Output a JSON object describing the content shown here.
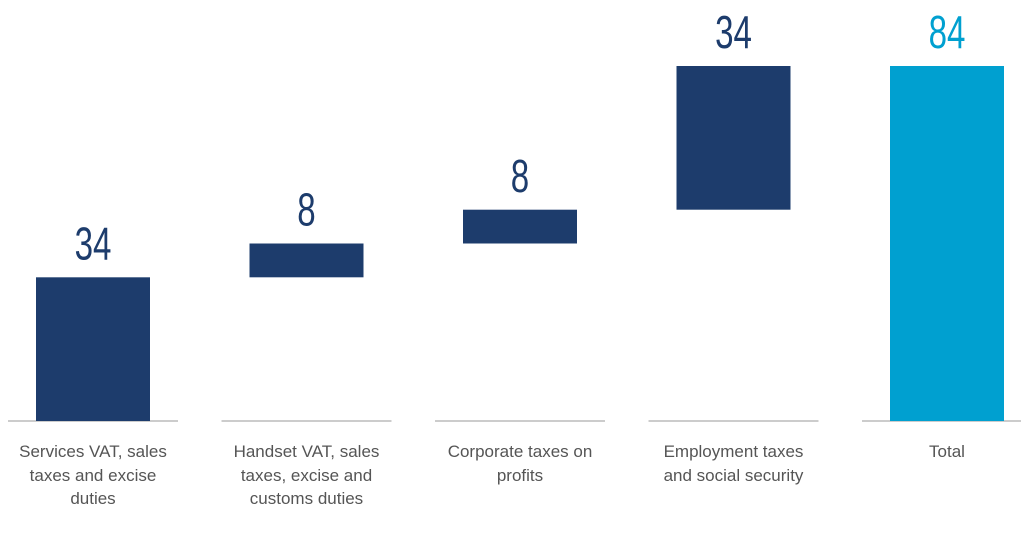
{
  "chart_data": {
    "type": "waterfall",
    "categories": [
      "Services VAT, sales taxes and excise duties",
      "Handset VAT, sales taxes, excise and customs duties",
      "Corporate taxes on profits",
      "Employment taxes and social security",
      "Total"
    ],
    "values": [
      34,
      8,
      8,
      34,
      84
    ],
    "is_total": [
      false,
      false,
      false,
      false,
      true
    ],
    "color": "#1d3c6c",
    "total_color": "#00a0d0"
  }
}
